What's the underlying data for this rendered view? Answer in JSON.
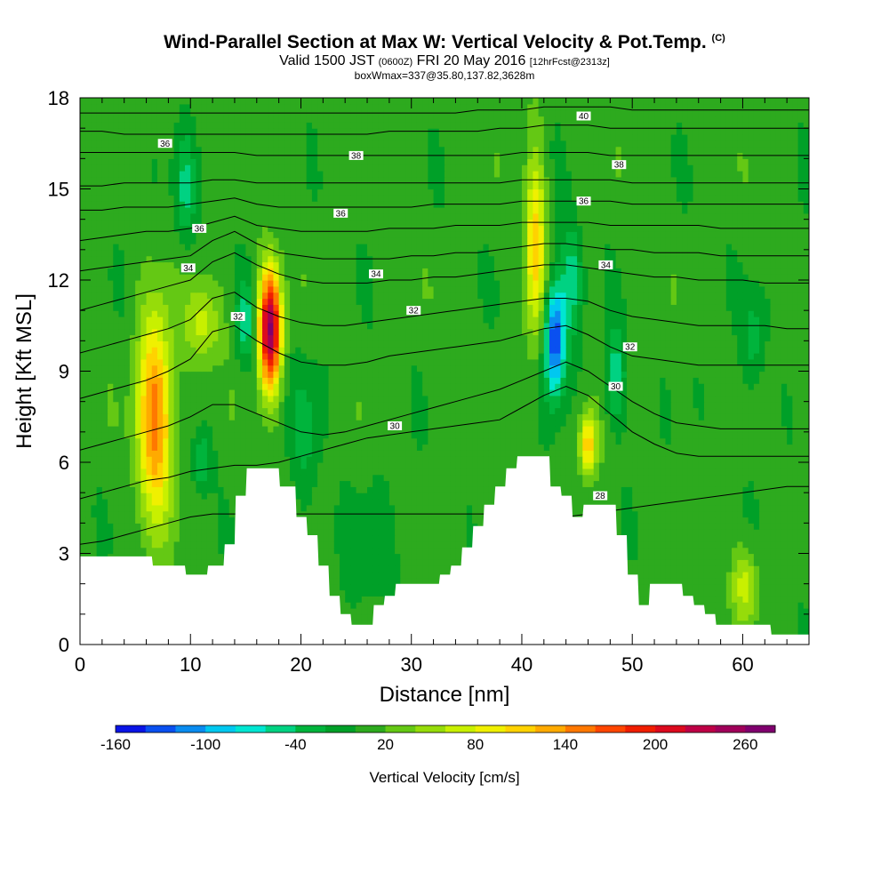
{
  "header": {
    "title": "Wind-Parallel Section at Max W: Vertical Velocity & Pot.Temp.",
    "title_mark": "(C)",
    "valid_prefix": "Valid 1500 JST",
    "valid_utc": "(0600Z)",
    "valid_date": "FRI 20 May 2016",
    "forecast": "[12hrFcst@2313z]",
    "box_info": "boxWmax=337@35.80,137.82,3628m"
  },
  "chart_data": {
    "type": "heatmap",
    "xlabel": "Distance [nm]",
    "ylabel": "Height [Kft MSL]",
    "xlim": [
      0,
      66
    ],
    "ylim": [
      0,
      18
    ],
    "x_ticks": [
      0,
      10,
      20,
      30,
      40,
      50,
      60
    ],
    "y_ticks": [
      0,
      3,
      6,
      9,
      12,
      15,
      18
    ],
    "colorbar": {
      "label": "Vertical Velocity [cm/s]",
      "tick_labels": [
        -160,
        -100,
        -40,
        20,
        80,
        140,
        200,
        260
      ],
      "levels": [
        -160,
        -140,
        -120,
        -100,
        -80,
        -60,
        -40,
        -20,
        0,
        20,
        40,
        60,
        80,
        100,
        120,
        140,
        160,
        180,
        200,
        220,
        240,
        260,
        280
      ],
      "colors": [
        "#0a14e6",
        "#0a50f0",
        "#0a8cf0",
        "#00c8f0",
        "#00e6d2",
        "#00d282",
        "#00b43c",
        "#00a028",
        "#2daa1e",
        "#64c814",
        "#96dc0a",
        "#c8f000",
        "#f0f000",
        "#ffd200",
        "#ffaa00",
        "#ff7800",
        "#ff4600",
        "#f01e00",
        "#dc0a1e",
        "#be0046",
        "#a0005a",
        "#80006e"
      ]
    },
    "background_w": 8,
    "updrafts": [
      {
        "x": 6.8,
        "y": 7.5,
        "peak_w": 145,
        "rx": 1.6,
        "ry": 3.3
      },
      {
        "x": 17.2,
        "y": 10.4,
        "peak_w": 250,
        "rx": 1.0,
        "ry": 1.9
      },
      {
        "x": 41.2,
        "y": 13.2,
        "peak_w": 105,
        "rx": 0.9,
        "ry": 3.0
      },
      {
        "x": 46.0,
        "y": 6.6,
        "peak_w": 110,
        "rx": 0.8,
        "ry": 1.0
      },
      {
        "x": 60.2,
        "y": 2.0,
        "peak_w": 60,
        "rx": 1.2,
        "ry": 1.2
      },
      {
        "x": 11.2,
        "y": 10.6,
        "peak_w": 60,
        "rx": 1.6,
        "ry": 1.4
      }
    ],
    "downdrafts": [
      {
        "x": 43.0,
        "y": 10.1,
        "peak_w": -155,
        "rx": 0.9,
        "ry": 1.8
      },
      {
        "x": 44.5,
        "y": 12.0,
        "peak_w": -60,
        "rx": 1.0,
        "ry": 1.8
      },
      {
        "x": 15.0,
        "y": 10.6,
        "peak_w": -60,
        "rx": 0.8,
        "ry": 1.3
      },
      {
        "x": 11.0,
        "y": 6.0,
        "peak_w": -55,
        "rx": 0.8,
        "ry": 1.0
      },
      {
        "x": 9.5,
        "y": 15.0,
        "peak_w": -50,
        "rx": 0.9,
        "ry": 1.8
      },
      {
        "x": 48.5,
        "y": 8.8,
        "peak_w": -60,
        "rx": 0.9,
        "ry": 1.6
      },
      {
        "x": 20.5,
        "y": 7.0,
        "peak_w": -30,
        "rx": 1.5,
        "ry": 2.5
      },
      {
        "x": 26.0,
        "y": 3.0,
        "peak_w": -25,
        "rx": 2.5,
        "ry": 1.8
      },
      {
        "x": 61.0,
        "y": 10.0,
        "peak_w": -40,
        "rx": 1.0,
        "ry": 1.5
      }
    ],
    "terrain": [
      [
        0,
        2.9
      ],
      [
        4,
        2.9
      ],
      [
        6.5,
        2.9
      ],
      [
        6.6,
        2.6
      ],
      [
        9.5,
        2.6
      ],
      [
        9.6,
        2.3
      ],
      [
        11.5,
        2.3
      ],
      [
        11.6,
        2.6
      ],
      [
        13,
        2.6
      ],
      [
        13.1,
        3.3
      ],
      [
        14,
        3.3
      ],
      [
        14.1,
        4.9
      ],
      [
        15,
        4.9
      ],
      [
        15.1,
        5.8
      ],
      [
        18,
        5.8
      ],
      [
        18.1,
        5.2
      ],
      [
        19.5,
        5.2
      ],
      [
        19.6,
        4.2
      ],
      [
        20.5,
        4.2
      ],
      [
        20.6,
        3.6
      ],
      [
        21.5,
        3.6
      ],
      [
        21.6,
        2.6
      ],
      [
        22.5,
        2.6
      ],
      [
        22.6,
        1.6
      ],
      [
        23.5,
        1.6
      ],
      [
        23.6,
        1.0
      ],
      [
        24.5,
        1.0
      ],
      [
        24.6,
        0.65
      ],
      [
        26.5,
        0.65
      ],
      [
        26.6,
        1.3
      ],
      [
        27.5,
        1.3
      ],
      [
        27.6,
        1.6
      ],
      [
        28.5,
        1.6
      ],
      [
        28.6,
        2.0
      ],
      [
        32.5,
        2.0
      ],
      [
        32.6,
        2.3
      ],
      [
        33.5,
        2.3
      ],
      [
        33.6,
        2.6
      ],
      [
        34.5,
        2.6
      ],
      [
        34.6,
        3.2
      ],
      [
        35.5,
        3.2
      ],
      [
        35.6,
        3.9
      ],
      [
        36.5,
        3.9
      ],
      [
        36.6,
        4.6
      ],
      [
        37.5,
        4.6
      ],
      [
        37.6,
        5.2
      ],
      [
        38.5,
        5.2
      ],
      [
        38.6,
        5.8
      ],
      [
        39.5,
        5.8
      ],
      [
        39.6,
        6.2
      ],
      [
        42.5,
        6.2
      ],
      [
        42.6,
        5.2
      ],
      [
        43.5,
        5.2
      ],
      [
        43.6,
        4.9
      ],
      [
        44.5,
        4.9
      ],
      [
        44.6,
        4.2
      ],
      [
        45.5,
        4.2
      ],
      [
        45.6,
        4.6
      ],
      [
        48.5,
        4.6
      ],
      [
        48.6,
        3.6
      ],
      [
        49.5,
        3.6
      ],
      [
        49.6,
        2.3
      ],
      [
        50.5,
        2.3
      ],
      [
        50.6,
        1.3
      ],
      [
        51.5,
        1.3
      ],
      [
        51.6,
        2.0
      ],
      [
        54.5,
        2.0
      ],
      [
        54.6,
        1.6
      ],
      [
        55.5,
        1.6
      ],
      [
        55.6,
        1.3
      ],
      [
        56.5,
        1.3
      ],
      [
        56.6,
        1.0
      ],
      [
        57.5,
        1.0
      ],
      [
        57.6,
        0.65
      ],
      [
        62.5,
        0.65
      ],
      [
        62.6,
        0.33
      ],
      [
        66,
        0.33
      ]
    ],
    "isentropes": [
      {
        "value": 28,
        "y": [
          3.3,
          3.4,
          3.6,
          3.8,
          4.0,
          4.2,
          4.3,
          4.3,
          4.3,
          4.3,
          4.3,
          4.3,
          4.3,
          4.3,
          4.3,
          4.3,
          4.3,
          4.3,
          4.3,
          4.3,
          4.3,
          4.3,
          4.2,
          4.3,
          4.4,
          4.5,
          4.6,
          4.7,
          4.8,
          4.9,
          5.0,
          5.1,
          5.2,
          5.2
        ]
      },
      {
        "value": 30,
        "y": [
          4.8,
          5.0,
          5.2,
          5.4,
          5.5,
          5.7,
          5.8,
          5.9,
          5.9,
          6.0,
          6.2,
          6.4,
          6.6,
          6.8,
          6.9,
          7.0,
          7.1,
          7.2,
          7.3,
          7.4,
          7.8,
          8.2,
          8.5,
          8.2,
          7.6,
          7.0,
          6.6,
          6.3,
          6.2,
          6.2,
          6.2,
          6.2,
          6.2,
          6.2
        ]
      },
      {
        "value": 30,
        "y": [
          6.4,
          6.6,
          6.8,
          7.0,
          7.2,
          7.5,
          7.9,
          7.9,
          7.6,
          7.3,
          7.0,
          6.9,
          7.0,
          7.2,
          7.4,
          7.6,
          7.8,
          8.0,
          8.2,
          8.4,
          8.7,
          9.0,
          9.3,
          9.0,
          8.5,
          8.0,
          7.6,
          7.3,
          7.2,
          7.1,
          7.1,
          7.1,
          7.1,
          7.1
        ]
      },
      {
        "value": 32,
        "y": [
          8.1,
          8.3,
          8.5,
          8.7,
          9.0,
          9.4,
          10.3,
          10.5,
          10.0,
          9.6,
          9.3,
          9.2,
          9.2,
          9.3,
          9.5,
          9.6,
          9.7,
          9.8,
          9.9,
          10.0,
          10.2,
          10.4,
          10.5,
          10.2,
          9.8,
          9.5,
          9.4,
          9.3,
          9.2,
          9.2,
          9.2,
          9.2,
          9.2,
          9.2
        ]
      },
      {
        "value": 32,
        "y": [
          9.6,
          9.8,
          10.0,
          10.2,
          10.4,
          10.7,
          11.4,
          11.6,
          11.1,
          10.8,
          10.6,
          10.5,
          10.5,
          10.6,
          10.7,
          10.8,
          10.9,
          11.0,
          11.1,
          11.2,
          11.3,
          11.4,
          11.4,
          11.3,
          11.0,
          10.8,
          10.7,
          10.6,
          10.5,
          10.5,
          10.5,
          10.5,
          10.4,
          10.4
        ]
      },
      {
        "value": 34,
        "y": [
          11.0,
          11.2,
          11.4,
          11.6,
          11.8,
          12.0,
          12.6,
          12.9,
          12.5,
          12.2,
          12.0,
          11.9,
          11.9,
          11.9,
          12.0,
          12.0,
          12.1,
          12.1,
          12.2,
          12.3,
          12.4,
          12.5,
          12.5,
          12.4,
          12.3,
          12.2,
          12.1,
          12.1,
          12.0,
          12.0,
          12.0,
          11.9,
          11.9,
          11.9
        ]
      },
      {
        "value": 34,
        "y": [
          12.3,
          12.4,
          12.5,
          12.6,
          12.7,
          12.8,
          13.3,
          13.6,
          13.2,
          12.9,
          12.8,
          12.7,
          12.7,
          12.7,
          12.7,
          12.8,
          12.8,
          12.9,
          12.9,
          13.0,
          13.1,
          13.2,
          13.2,
          13.1,
          13.0,
          13.0,
          12.9,
          12.9,
          12.9,
          12.8,
          12.8,
          12.8,
          12.8,
          12.8
        ]
      },
      {
        "value": 36,
        "y": [
          13.3,
          13.4,
          13.5,
          13.6,
          13.6,
          13.7,
          13.9,
          14.1,
          13.8,
          13.7,
          13.6,
          13.6,
          13.6,
          13.6,
          13.7,
          13.7,
          13.7,
          13.8,
          13.8,
          13.8,
          13.9,
          13.9,
          13.9,
          13.9,
          13.8,
          13.8,
          13.8,
          13.8,
          13.8,
          13.7,
          13.7,
          13.7,
          13.7,
          13.7
        ]
      },
      {
        "value": 36,
        "y": [
          14.3,
          14.3,
          14.4,
          14.4,
          14.4,
          14.5,
          14.6,
          14.7,
          14.5,
          14.4,
          14.4,
          14.4,
          14.4,
          14.4,
          14.4,
          14.4,
          14.5,
          14.5,
          14.5,
          14.5,
          14.6,
          14.6,
          14.6,
          14.6,
          14.6,
          14.5,
          14.5,
          14.5,
          14.5,
          14.5,
          14.5,
          14.5,
          14.5,
          14.5
        ]
      },
      {
        "value": 38,
        "y": [
          15.1,
          15.1,
          15.2,
          15.2,
          15.2,
          15.2,
          15.3,
          15.3,
          15.2,
          15.2,
          15.2,
          15.2,
          15.2,
          15.2,
          15.2,
          15.2,
          15.2,
          15.2,
          15.2,
          15.2,
          15.3,
          15.3,
          15.3,
          15.3,
          15.3,
          15.2,
          15.2,
          15.2,
          15.2,
          15.2,
          15.2,
          15.2,
          15.2,
          15.2
        ]
      },
      {
        "value": 38,
        "y": [
          16.2,
          16.2,
          16.2,
          16.2,
          16.2,
          16.2,
          16.2,
          16.2,
          16.1,
          16.1,
          16.1,
          16.1,
          16.1,
          16.1,
          16.1,
          16.1,
          16.1,
          16.1,
          16.1,
          16.1,
          16.2,
          16.2,
          16.2,
          16.2,
          16.1,
          16.1,
          16.1,
          16.1,
          16.1,
          16.1,
          16.1,
          16.1,
          16.1,
          16.1
        ]
      },
      {
        "value": 40,
        "y": [
          16.9,
          16.9,
          16.8,
          16.8,
          16.8,
          16.8,
          16.8,
          16.8,
          16.8,
          16.8,
          16.8,
          16.8,
          16.8,
          16.8,
          16.9,
          16.9,
          16.9,
          16.9,
          16.9,
          17.0,
          17.0,
          17.1,
          17.1,
          17.1,
          17.0,
          17.0,
          17.0,
          17.0,
          17.0,
          17.0,
          17.0,
          17.0,
          17.0,
          17.0
        ]
      },
      {
        "value": 40,
        "y": [
          17.5,
          17.5,
          17.5,
          17.5,
          17.5,
          17.5,
          17.5,
          17.5,
          17.5,
          17.5,
          17.5,
          17.5,
          17.5,
          17.5,
          17.5,
          17.5,
          17.5,
          17.5,
          17.6,
          17.6,
          17.6,
          17.7,
          17.7,
          17.7,
          17.7,
          17.6,
          17.6,
          17.6,
          17.6,
          17.6,
          17.6,
          17.6,
          17.6,
          17.6
        ]
      }
    ],
    "contour_labels": [
      {
        "text": "36",
        "x": 7.7,
        "y": 16.5
      },
      {
        "text": "38",
        "x": 25.0,
        "y": 16.1
      },
      {
        "text": "40",
        "x": 45.6,
        "y": 17.4
      },
      {
        "text": "38",
        "x": 48.8,
        "y": 15.8
      },
      {
        "text": "36",
        "x": 23.6,
        "y": 14.2
      },
      {
        "text": "36",
        "x": 45.6,
        "y": 14.6
      },
      {
        "text": "36",
        "x": 10.8,
        "y": 13.7
      },
      {
        "text": "34",
        "x": 9.8,
        "y": 12.4
      },
      {
        "text": "34",
        "x": 26.8,
        "y": 12.2
      },
      {
        "text": "34",
        "x": 47.6,
        "y": 12.5
      },
      {
        "text": "32",
        "x": 14.3,
        "y": 10.8
      },
      {
        "text": "32",
        "x": 30.2,
        "y": 11.0
      },
      {
        "text": "32",
        "x": 49.8,
        "y": 9.8
      },
      {
        "text": "30",
        "x": 48.5,
        "y": 8.5
      },
      {
        "text": "30",
        "x": 28.5,
        "y": 7.2
      },
      {
        "text": "28",
        "x": 47.1,
        "y": 4.9
      }
    ]
  },
  "colors": {
    "terrain": "#ffffff",
    "contour": "#000000",
    "label_bg": "#ffffff"
  }
}
